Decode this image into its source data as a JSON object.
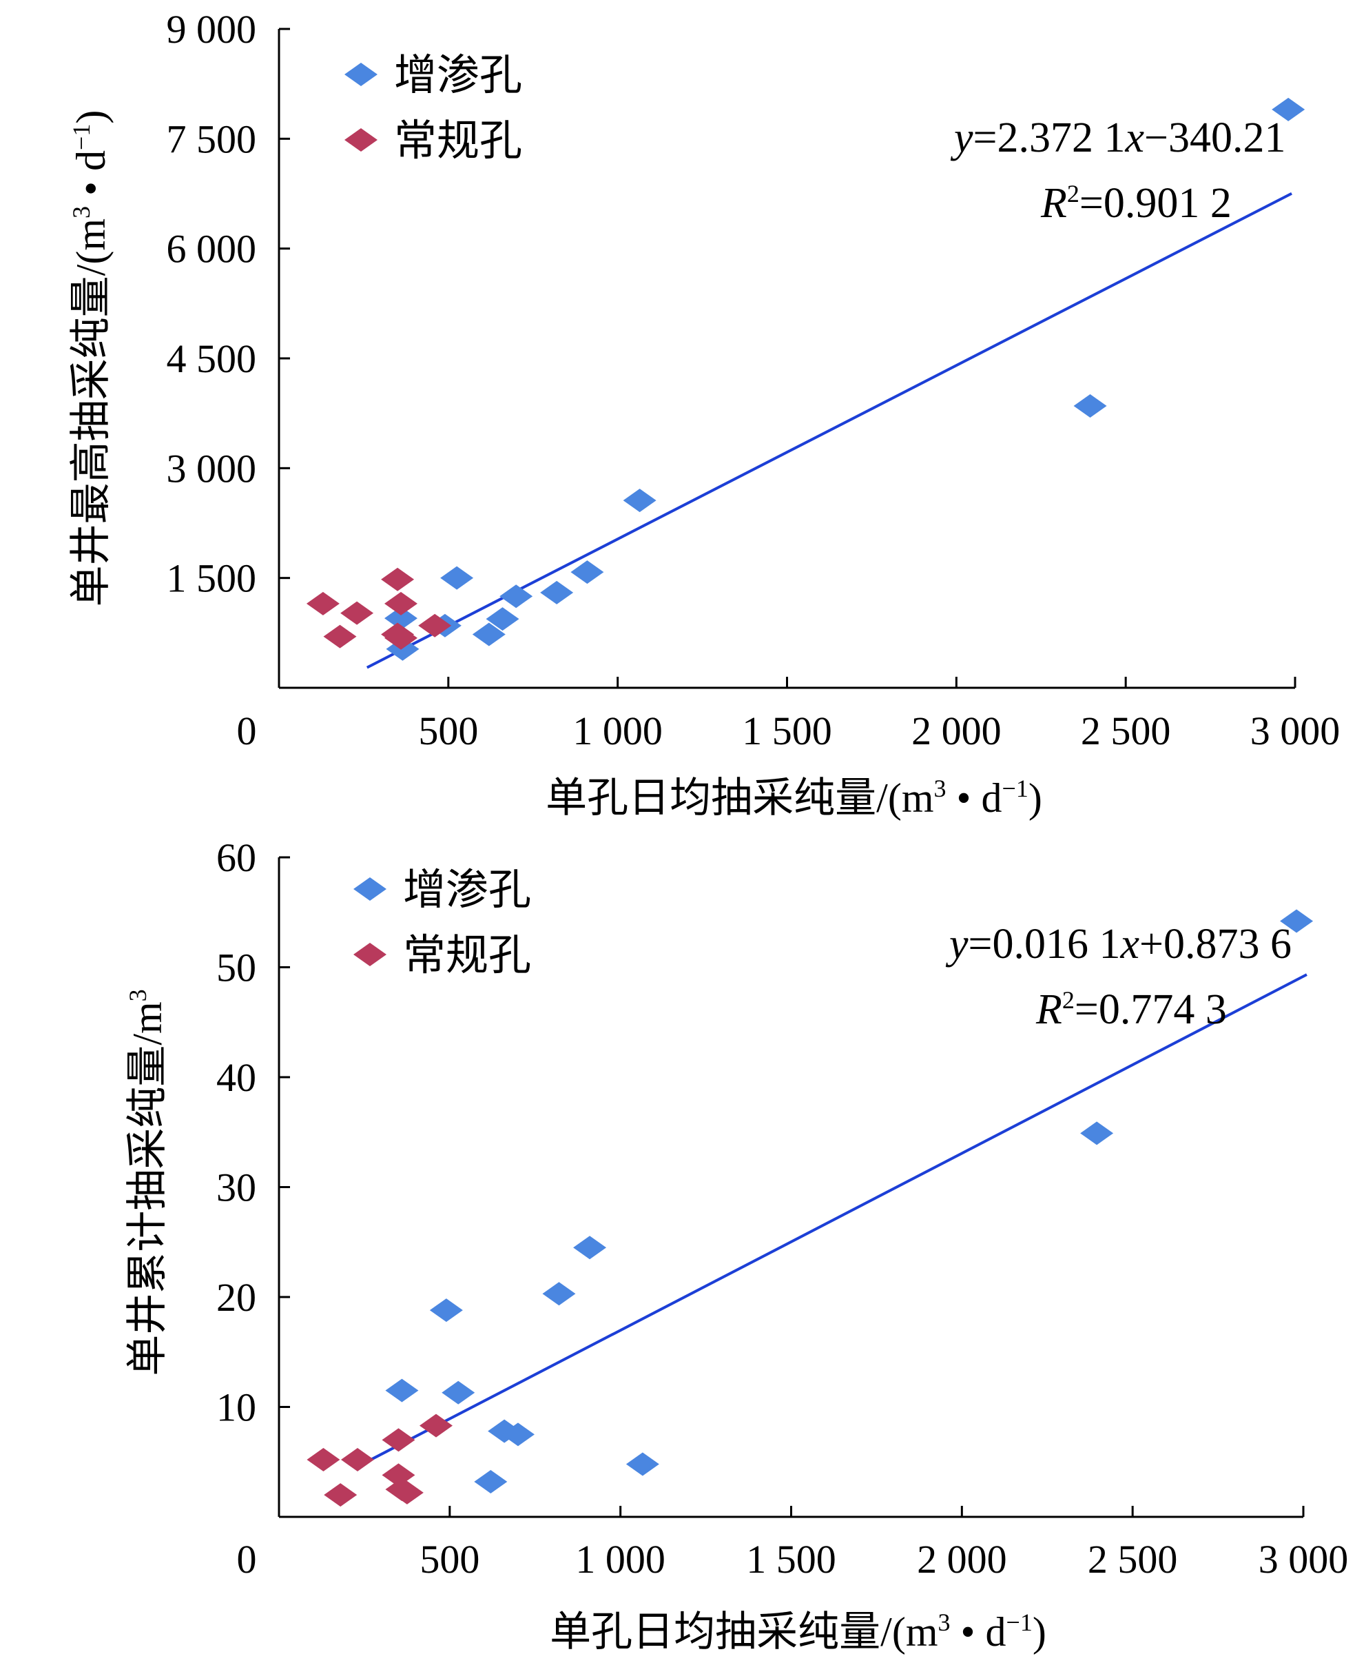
{
  "chart_data": [
    {
      "type": "scatter",
      "title": "",
      "xlabel": "单孔日均抽采纯量/(m³ • d⁻¹)",
      "ylabel": "单井最高抽采纯量/(m³ • d⁻¹)",
      "xlabel_parts": {
        "main": "单孔日均抽采纯量/(m",
        "sup1": "3",
        "mid": " • d",
        "sup2": "−1",
        "end": ")"
      },
      "ylabel_parts": {
        "main": "单井最高抽采纯量/(m",
        "sup1": "3",
        "mid": " • d",
        "sup2": "−1",
        "end": ")"
      },
      "xlim": [
        0,
        3000
      ],
      "ylim": [
        0,
        9000
      ],
      "x_ticks": [
        {
          "value": 0,
          "label": "0"
        },
        {
          "value": 500,
          "label": "500"
        },
        {
          "value": 1000,
          "label": "1 000"
        },
        {
          "value": 1500,
          "label": "1 500"
        },
        {
          "value": 2000,
          "label": "2 000"
        },
        {
          "value": 2500,
          "label": "2 500"
        },
        {
          "value": 3000,
          "label": "3 000"
        }
      ],
      "y_ticks": [
        {
          "value": 1500,
          "label": "1 500"
        },
        {
          "value": 3000,
          "label": "3 000"
        },
        {
          "value": 4500,
          "label": "4 500"
        },
        {
          "value": 6000,
          "label": "6 000"
        },
        {
          "value": 7500,
          "label": "7 500"
        },
        {
          "value": 9000,
          "label": "9 000"
        }
      ],
      "grid": false,
      "legend_position": "top-left",
      "series": [
        {
          "name": "增渗孔",
          "color": "#4a86e0",
          "marker": "diamond",
          "points": [
            {
              "x": 360,
              "y": 950
            },
            {
              "x": 365,
              "y": 530
            },
            {
              "x": 490,
              "y": 850
            },
            {
              "x": 525,
              "y": 1500
            },
            {
              "x": 620,
              "y": 730
            },
            {
              "x": 660,
              "y": 940
            },
            {
              "x": 700,
              "y": 1250
            },
            {
              "x": 820,
              "y": 1300
            },
            {
              "x": 910,
              "y": 1580
            },
            {
              "x": 1065,
              "y": 2560
            },
            {
              "x": 2395,
              "y": 3850
            },
            {
              "x": 2980,
              "y": 7900
            }
          ]
        },
        {
          "name": "常规孔",
          "color": "#b83a5c",
          "marker": "diamond",
          "points": [
            {
              "x": 130,
              "y": 1150
            },
            {
              "x": 180,
              "y": 700
            },
            {
              "x": 230,
              "y": 1020
            },
            {
              "x": 350,
              "y": 1480
            },
            {
              "x": 350,
              "y": 730
            },
            {
              "x": 360,
              "y": 1150
            },
            {
              "x": 360,
              "y": 680
            },
            {
              "x": 460,
              "y": 850
            }
          ]
        }
      ],
      "trendline": {
        "color": "#1c3fd6",
        "slope": 2.3721,
        "intercept": -340.21,
        "x_range": [
          260,
          2990
        ],
        "equation_parts": {
          "y": "y",
          "rhs1": "=2.372 1",
          "x": "x",
          "rhs2": "−340.21"
        },
        "r2_parts": {
          "r": "R",
          "sup": "2",
          "rhs": "=0.901 2"
        }
      }
    },
    {
      "type": "scatter",
      "title": "",
      "xlabel": "单孔日均抽采纯量/(m³ • d⁻¹)",
      "ylabel": "单井累计抽采纯量/m³",
      "xlabel_parts": {
        "main": "单孔日均抽采纯量/(m",
        "sup1": "3",
        "mid": " • d",
        "sup2": "−1",
        "end": ")"
      },
      "ylabel_parts": {
        "main": "单井累计抽采纯量/m",
        "sup1": "3",
        "mid": "",
        "sup2": "",
        "end": ""
      },
      "xlim": [
        0,
        3000
      ],
      "ylim": [
        0,
        60
      ],
      "x_ticks": [
        {
          "value": 0,
          "label": "0"
        },
        {
          "value": 500,
          "label": "500"
        },
        {
          "value": 1000,
          "label": "1 000"
        },
        {
          "value": 1500,
          "label": "1 500"
        },
        {
          "value": 2000,
          "label": "2 000"
        },
        {
          "value": 2500,
          "label": "2 500"
        },
        {
          "value": 3000,
          "label": "3 000"
        }
      ],
      "y_ticks": [
        {
          "value": 10,
          "label": "10"
        },
        {
          "value": 20,
          "label": "20"
        },
        {
          "value": 30,
          "label": "30"
        },
        {
          "value": 40,
          "label": "40"
        },
        {
          "value": 50,
          "label": "50"
        },
        {
          "value": 60,
          "label": "60"
        }
      ],
      "grid": false,
      "legend_position": "top-left",
      "series": [
        {
          "name": "增渗孔",
          "color": "#4a86e0",
          "marker": "diamond",
          "points": [
            {
              "x": 360,
              "y": 11.5
            },
            {
              "x": 490,
              "y": 18.8
            },
            {
              "x": 525,
              "y": 11.3
            },
            {
              "x": 620,
              "y": 3.2
            },
            {
              "x": 660,
              "y": 7.8
            },
            {
              "x": 700,
              "y": 7.5
            },
            {
              "x": 820,
              "y": 20.3
            },
            {
              "x": 910,
              "y": 24.5
            },
            {
              "x": 1065,
              "y": 4.8
            },
            {
              "x": 2395,
              "y": 34.9
            },
            {
              "x": 2980,
              "y": 54.2
            }
          ]
        },
        {
          "name": "常规孔",
          "color": "#b83a5c",
          "marker": "diamond",
          "points": [
            {
              "x": 130,
              "y": 5.2
            },
            {
              "x": 180,
              "y": 2.0
            },
            {
              "x": 230,
              "y": 5.2
            },
            {
              "x": 350,
              "y": 7.0
            },
            {
              "x": 350,
              "y": 3.8
            },
            {
              "x": 360,
              "y": 2.5
            },
            {
              "x": 375,
              "y": 2.2
            },
            {
              "x": 460,
              "y": 8.3
            }
          ]
        }
      ],
      "trendline": {
        "color": "#1c3fd6",
        "slope": 0.0161,
        "intercept": 0.8736,
        "x_range": [
          260,
          3010
        ],
        "equation_parts": {
          "y": "y",
          "rhs1": "=0.016 1",
          "x": "x",
          "rhs2": "+0.873 6"
        },
        "r2_parts": {
          "r": "R",
          "sup": "2",
          "rhs": "=0.774 3"
        }
      }
    }
  ]
}
